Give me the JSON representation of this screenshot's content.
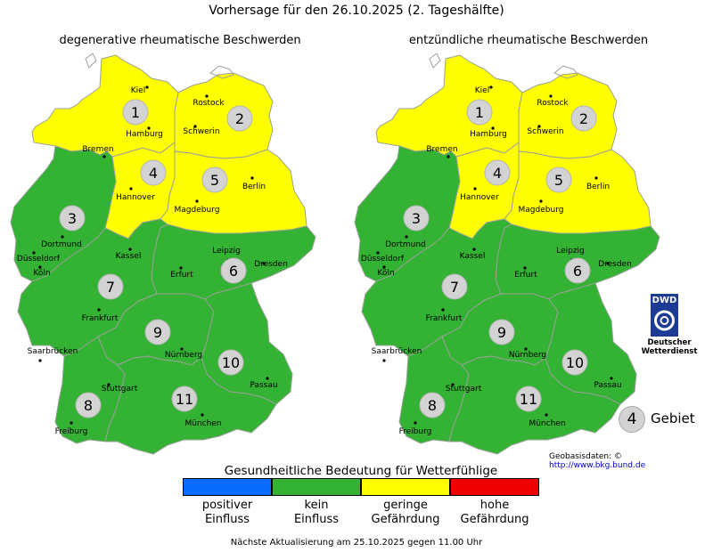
{
  "title": "Vorhersage für den 26.10.2025 (2. Tageshälfte)",
  "maps": [
    {
      "title": "degenerative rheumatische Beschwerden",
      "regions": [
        {
          "id": 1,
          "level": "geringe Gefährdung"
        },
        {
          "id": 2,
          "level": "geringe Gefährdung"
        },
        {
          "id": 3,
          "level": "kein Einfluss"
        },
        {
          "id": 4,
          "level": "geringe Gefährdung"
        },
        {
          "id": 5,
          "level": "geringe Gefährdung"
        },
        {
          "id": 6,
          "level": "kein Einfluss"
        },
        {
          "id": 7,
          "level": "kein Einfluss"
        },
        {
          "id": 8,
          "level": "kein Einfluss"
        },
        {
          "id": 9,
          "level": "kein Einfluss"
        },
        {
          "id": 10,
          "level": "kein Einfluss"
        },
        {
          "id": 11,
          "level": "kein Einfluss"
        }
      ]
    },
    {
      "title": "entzündliche rheumatische Beschwerden",
      "regions": [
        {
          "id": 1,
          "level": "geringe Gefährdung"
        },
        {
          "id": 2,
          "level": "geringe Gefährdung"
        },
        {
          "id": 3,
          "level": "kein Einfluss"
        },
        {
          "id": 4,
          "level": "geringe Gefährdung"
        },
        {
          "id": 5,
          "level": "geringe Gefährdung"
        },
        {
          "id": 6,
          "level": "kein Einfluss"
        },
        {
          "id": 7,
          "level": "kein Einfluss"
        },
        {
          "id": 8,
          "level": "kein Einfluss"
        },
        {
          "id": 9,
          "level": "kein Einfluss"
        },
        {
          "id": 10,
          "level": "kein Einfluss"
        },
        {
          "id": 11,
          "level": "kein Einfluss"
        }
      ]
    }
  ],
  "cities": [
    "Kiel",
    "Rostock",
    "Hamburg",
    "Schwerin",
    "Bremen",
    "Hannover",
    "Berlin",
    "Magdeburg",
    "Dortmund",
    "Düsseldorf",
    "Köln",
    "Kassel",
    "Leipzig",
    "Dresden",
    "Erfurt",
    "Frankfurt",
    "Saarbrücken",
    "Nürnberg",
    "Passau",
    "Stuttgart",
    "München",
    "Freiburg"
  ],
  "legend": {
    "title": "Gesundheitliche Bedeutung für Wetterfühlige",
    "items": [
      {
        "line1": "positiver",
        "line2": "Einfluss",
        "color": "#0a6cff"
      },
      {
        "line1": "kein",
        "line2": "Einfluss",
        "color": "#33b233"
      },
      {
        "line1": "geringe",
        "line2": "Gefährdung",
        "color": "#ffff00"
      },
      {
        "line1": "hohe",
        "line2": "Gefährdung",
        "color": "#ee0000"
      }
    ]
  },
  "gebiet_legend": {
    "number": "4",
    "label": "Gebiet"
  },
  "logo": {
    "abbr": "DWD",
    "line1": "Deutscher",
    "line2": "Wetterdienst"
  },
  "geobasis": {
    "label": "Geobasisdaten: ©",
    "link": "http://www.bkg.bund.de"
  },
  "footer": "Nächste Aktualisierung am 25.10.2025 gegen 11.00 Uhr",
  "colors": {
    "yellow": "#ffff00",
    "green": "#33b233",
    "border": "#9aa09a",
    "circle": "#d3d3d3"
  }
}
